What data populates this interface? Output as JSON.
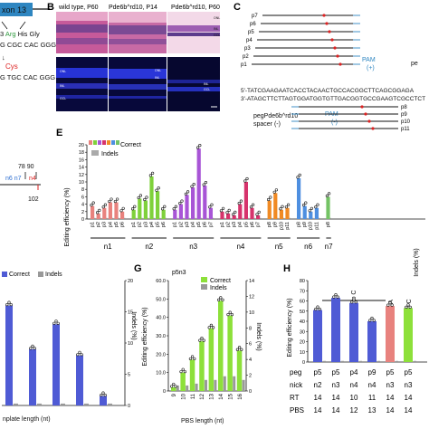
{
  "panel_a": {
    "exon_label": "xon 13",
    "codon_row1_pre": "3 ",
    "codon_row1_arg": "Arg",
    "codon_row1_post": " His Gly",
    "codon_row2": "G CGC CAC GGG",
    "marker": "↓",
    "cys_label": "Cys",
    "codon_row3": "G TGC CAC GGG"
  },
  "panel_b": {
    "letter": "B",
    "col1": "wild type, P60",
    "col2": "Pde6b^rd10, P14",
    "col3": "Pde6b^rd10, P60",
    "he_labels": [
      "ONL",
      "INL",
      "GCL"
    ],
    "dapi_labels": [
      "ONL",
      "INL",
      "INL",
      "GCL",
      "ONL",
      "INL",
      "GCL"
    ]
  },
  "panel_c": {
    "letter": "C",
    "pegs_top": [
      "p7",
      "p6",
      "p5",
      "p4",
      "p3",
      "p2",
      "p1"
    ],
    "pegs_bottom": [
      "p8",
      "p9",
      "p10",
      "p11"
    ],
    "pam_plus": "PAM",
    "pam_plus_strand": "(+)",
    "pe_cut": "pe",
    "seq_top": "5'-TATCGAAGAATCACCTACAACTGCCACGGCTTCAGCGGAGA",
    "seq_bottom": "3'-ATAGCTTCTTAGTGGATGGTGTTGACGGTGCCGAAGTCGCCTCT",
    "peg_label": "pegPde6b^rd10",
    "spacer_label": "spacer (-)",
    "pam_minus": "PAM",
    "pam_minus_strand": "(-)"
  },
  "panel_d": {
    "positions": "78 90",
    "nicks": "n6 n7",
    "n4": "n4",
    "pos102": "102"
  },
  "panel_e": {
    "letter": "E",
    "legend_correct": "Correct",
    "legend_indels": "Indels",
    "ylabel": "Editing efficiency (%)",
    "y2label": "Indels (%)",
    "yticks": [
      "0",
      "2",
      "4",
      "6",
      "8",
      "10",
      "12",
      "14",
      "16",
      "18",
      "20"
    ]
  },
  "panel_f": {
    "xlabel": "nplate length (nt)",
    "y2label": "Indels (%)",
    "legend_correct": "Correct",
    "legend_indels": "Indels",
    "yticks": [
      "0",
      "5",
      "10",
      "15",
      "20"
    ]
  },
  "panel_g": {
    "letter": "G",
    "title": "p5n3",
    "ylabel": "Editing efficiency (%)",
    "y2label": "Indels (%)",
    "xlabel": "PBS length (nt)",
    "legend_correct": "Correct",
    "legend_indels": "Indels",
    "yticks": [
      "0",
      "10.0",
      "20.0",
      "30.0",
      "40.0",
      "50.0",
      "60.0"
    ],
    "y2ticks": [
      "0",
      "2",
      "4",
      "6",
      "8",
      "10",
      "12",
      "14"
    ]
  },
  "panel_h": {
    "letter": "H",
    "ylabel": "Editing efficiency (%)",
    "bracket_label": "T to C",
    "bar_label_tgc": "TGC to AGA",
    "bar_label_acins": "ACins,T to C",
    "yticks": [
      "0",
      "10",
      "20",
      "30",
      "40",
      "50",
      "60",
      "70",
      "80"
    ],
    "table_rows": [
      {
        "label": "peg",
        "values": [
          "p5",
          "p5",
          "p4",
          "p9",
          "p5",
          "p5"
        ]
      },
      {
        "label": "nick",
        "values": [
          "n2",
          "n3",
          "n4",
          "n4",
          "n3",
          "n3"
        ]
      },
      {
        "label": "RT",
        "values": [
          "14",
          "14",
          "10",
          "11",
          "14",
          "14"
        ]
      },
      {
        "label": "PBS",
        "values": [
          "14",
          "14",
          "12",
          "13",
          "14",
          "14"
        ]
      }
    ]
  },
  "chart_data": [
    {
      "panel": "E",
      "type": "bar",
      "ylabel": "Editing efficiency (%)",
      "y2label": "Indels (%)",
      "ylim": [
        0,
        20
      ],
      "groups": [
        {
          "name": "n1",
          "color": "#e8827e",
          "categories": [
            "p1",
            "p2",
            "p3",
            "p4",
            "p5",
            "p6"
          ],
          "values": [
            3.5,
            1.5,
            3.0,
            4.5,
            4.5,
            2.0
          ]
        },
        {
          "name": "n2",
          "color": "#7fd13b",
          "categories": [
            "p1",
            "p2",
            "p3",
            "p4",
            "p5",
            "p6"
          ],
          "values": [
            2.5,
            5.5,
            5.0,
            11.5,
            7.5,
            2.5
          ]
        },
        {
          "name": "n3",
          "color": "#a855d6",
          "categories": [
            "p1",
            "p2",
            "p3",
            "p4",
            "p5",
            "p6",
            "p7"
          ],
          "values": [
            2.5,
            4.0,
            6.5,
            8.5,
            19.0,
            9.0,
            3.0
          ]
        },
        {
          "name": "n4",
          "color": "#d6336c",
          "categories": [
            "p1",
            "p2",
            "p3",
            "p4",
            "p5",
            "p6",
            "p7"
          ],
          "values": [
            2.0,
            1.5,
            1.0,
            4.0,
            10.0,
            3.0,
            1.0
          ]
        },
        {
          "name": "n5",
          "color": "#f08a24",
          "categories": [
            "p8",
            "p9",
            "p10",
            "p11"
          ],
          "values": [
            5.0,
            7.0,
            2.5,
            3.0
          ]
        },
        {
          "name": "n6",
          "color": "#4e8fe0",
          "categories": [
            "p8",
            "p9",
            "p10",
            "p11"
          ],
          "values": [
            11.0,
            3.5,
            2.0,
            3.0
          ]
        },
        {
          "name": "n7",
          "color": "#74c365",
          "categories": [
            "p8"
          ],
          "values": [
            6.0
          ]
        }
      ]
    },
    {
      "panel": "F",
      "type": "bar",
      "xlabel": "nplate length (nt)",
      "y2label": "Indels (%)",
      "ylim": [
        0,
        20
      ],
      "series": [
        {
          "name": "Correct",
          "color": "#4f5bd5",
          "values": [
            16.0,
            9.0,
            13.0,
            8.0,
            1.5
          ]
        },
        {
          "name": "Indels",
          "color": "#999999",
          "values": [
            0.3,
            0.3,
            0.3,
            0.3,
            0.3
          ]
        }
      ]
    },
    {
      "panel": "G",
      "type": "bar",
      "title": "p5n3",
      "ylabel": "Editing efficiency (%)",
      "y2label": "Indels (%)",
      "xlabel": "PBS length (nt)",
      "ylim": [
        0,
        60
      ],
      "categories": [
        "9",
        "10",
        "11",
        "12",
        "13",
        "14",
        "15",
        "16"
      ],
      "series": [
        {
          "name": "Correct",
          "color": "#8de03a",
          "values": [
            2.0,
            10.0,
            17.0,
            27.0,
            34.0,
            49.0,
            41.0,
            22.0
          ]
        },
        {
          "name": "Indels",
          "color": "#999999",
          "values": [
            3.0,
            3.0,
            4.0,
            6.0,
            6.0,
            8.0,
            8.0,
            6.0
          ]
        }
      ]
    },
    {
      "panel": "H",
      "type": "bar",
      "ylabel": "Editing efficiency (%)",
      "ylim": [
        0,
        80
      ],
      "series": [
        {
          "name": "Editing",
          "values": [
            51.0,
            63.0,
            58.0,
            40.0,
            55.0,
            53.0
          ],
          "colors": [
            "#4f5bd5",
            "#4f5bd5",
            "#4f5bd5",
            "#4f5bd5",
            "#e8827e",
            "#8de03a"
          ]
        }
      ]
    }
  ]
}
